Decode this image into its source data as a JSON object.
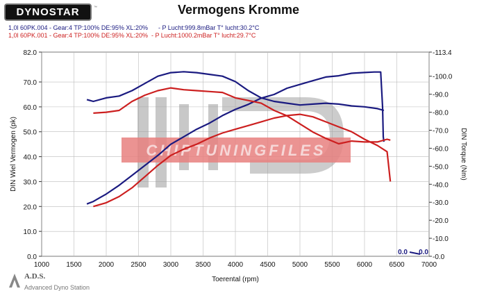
{
  "header": {
    "logo": "DYNOSTAR",
    "logo_mark": "™",
    "title": "Vermogens Kromme"
  },
  "runs": [
    {
      "label": "1,0l 60PK.004 - Gear:4 TP:100% DE:95% XL:20%      - P Lucht:999.8mBar T° lucht:30.2°C",
      "color": "#1a1a80"
    },
    {
      "label": "1,0l 60PK.001 - Gear:4 TP:100% DE:95% XL:20%  - P Lucht:1000.2mBar T° lucht:29.7°C",
      "color": "#cc1f1f"
    }
  ],
  "watermark": {
    "text": "CHIPTUNINGFILES"
  },
  "footer": {
    "brand": "A.D.S.",
    "subtitle": "Advanced Dyno Station"
  },
  "chart_data": {
    "type": "line",
    "xlabel": "Toerental (rpm)",
    "ylabel_left": "DIN Wiel Vermogen (pk)",
    "ylabel_right": "DIN Torque (Nm)",
    "xlim": [
      1000,
      7000
    ],
    "ylim_left": [
      0,
      82
    ],
    "ylim_right": [
      0,
      113.4
    ],
    "x_ticks": [
      "1000",
      "1500",
      "2000",
      "2500",
      "3000",
      "3500",
      "4000",
      "4500",
      "5000",
      "5500",
      "6000",
      "6500",
      "7000"
    ],
    "y_ticks_left": [
      "0.0",
      "10.0",
      "20.0",
      "30.0",
      "40.0",
      "50.0",
      "60.0",
      "70.0",
      "82.0"
    ],
    "y_ticks_right": [
      "0.0",
      "10.0",
      "20.0",
      "30.0",
      "40.0",
      "50.0",
      "60.0",
      "70.0",
      "80.0",
      "90.0",
      "100.0",
      "113.4"
    ],
    "grid": true,
    "series": [
      {
        "name": "1,0l 60PK.004",
        "quantity": "power",
        "axis": "left",
        "color": "#1a1a80",
        "x": [
          1700,
          1800,
          1900,
          2000,
          2200,
          2400,
          2600,
          2800,
          3000,
          3200,
          3400,
          3600,
          3800,
          4000,
          4200,
          4400,
          4600,
          4800,
          5000,
          5200,
          5400,
          5600,
          5800,
          6000,
          6150,
          6250,
          6280,
          6290,
          6300
        ],
        "y": [
          21.0,
          22.0,
          23.5,
          25.0,
          28.5,
          32.5,
          36.5,
          40.5,
          45.0,
          48.0,
          51.0,
          53.5,
          56.5,
          59.0,
          61.0,
          63.5,
          65.0,
          67.5,
          69.0,
          70.5,
          72.0,
          72.5,
          73.5,
          73.8,
          74.0,
          74.0,
          60.0,
          48.0,
          46.0
        ]
      },
      {
        "name": "1,0l 60PK.004",
        "quantity": "torque",
        "axis": "right",
        "color": "#1a1a80",
        "x": [
          1700,
          1800,
          2000,
          2200,
          2400,
          2600,
          2800,
          3000,
          3200,
          3400,
          3600,
          3800,
          4000,
          4200,
          4400,
          4600,
          4800,
          5000,
          5200,
          5400,
          5600,
          5800,
          6000,
          6200,
          6300
        ],
        "y": [
          87.0,
          86.0,
          88.0,
          89.0,
          92.0,
          96.0,
          100.0,
          102.0,
          102.5,
          102.0,
          101.0,
          100.0,
          97.0,
          92.0,
          88.0,
          86.0,
          85.0,
          84.0,
          84.5,
          85.0,
          84.5,
          83.5,
          83.0,
          82.0,
          81.0
        ]
      },
      {
        "name": "1,0l 60PK.001",
        "quantity": "power",
        "axis": "left",
        "color": "#cc1f1f",
        "x": [
          1800,
          2000,
          2200,
          2400,
          2600,
          2800,
          3000,
          3200,
          3400,
          3600,
          3800,
          4000,
          4200,
          4400,
          4600,
          4800,
          5000,
          5200,
          5400,
          5600,
          5800,
          6000,
          6200,
          6350,
          6400
        ],
        "y": [
          20.0,
          21.5,
          24.0,
          27.5,
          32.0,
          36.5,
          40.5,
          43.0,
          45.0,
          47.5,
          49.5,
          51.0,
          52.5,
          54.0,
          55.5,
          56.5,
          57.0,
          56.0,
          54.0,
          52.0,
          50.0,
          47.0,
          44.5,
          42.0,
          30.0
        ]
      },
      {
        "name": "1,0l 60PK.001",
        "quantity": "torque",
        "axis": "right",
        "color": "#cc1f1f",
        "x": [
          1800,
          2000,
          2200,
          2400,
          2600,
          2800,
          3000,
          3200,
          3400,
          3600,
          3800,
          4000,
          4200,
          4400,
          4600,
          4800,
          5000,
          5200,
          5400,
          5600,
          5800,
          6000,
          6200,
          6350,
          6400
        ],
        "y": [
          79.5,
          80.0,
          81.0,
          86.0,
          89.5,
          92.0,
          93.5,
          92.5,
          92.0,
          91.5,
          91.0,
          88.0,
          86.5,
          85.0,
          81.0,
          78.0,
          73.5,
          69.0,
          65.5,
          62.5,
          64.0,
          63.5,
          63.5,
          65.0,
          64.5
        ]
      }
    ],
    "readout": {
      "left": "0.0",
      "right": "0.0"
    }
  }
}
